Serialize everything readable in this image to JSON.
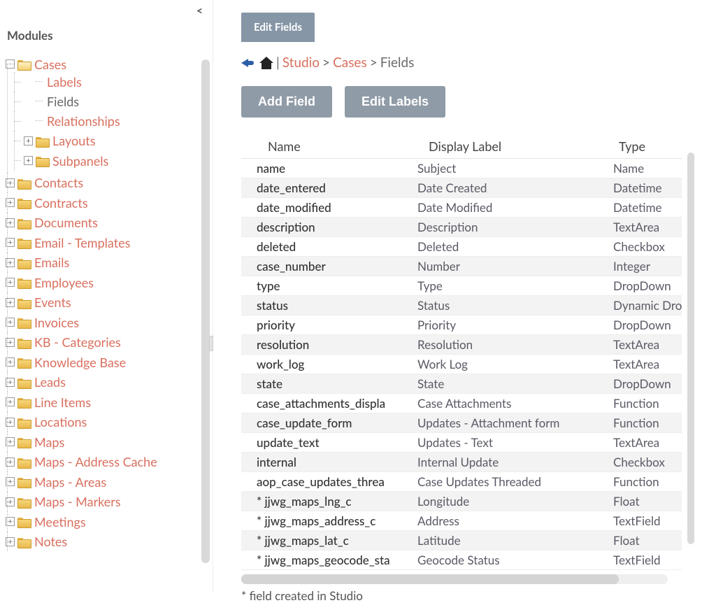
{
  "sidebar": {
    "title": "Modules",
    "expanded": {
      "label": "Cases",
      "children": [
        {
          "label": "Labels",
          "type": "leaf",
          "link": true
        },
        {
          "label": "Fields",
          "type": "leaf",
          "link": false
        },
        {
          "label": "Relationships",
          "type": "leaf",
          "link": true
        },
        {
          "label": "Layouts",
          "type": "folder",
          "link": true
        },
        {
          "label": "Subpanels",
          "type": "folder",
          "link": true
        }
      ]
    },
    "modules": [
      "Contacts",
      "Contracts",
      "Documents",
      "Email - Templates",
      "Emails",
      "Employees",
      "Events",
      "Invoices",
      "KB - Categories",
      "Knowledge Base",
      "Leads",
      "Line Items",
      "Locations",
      "Maps",
      "Maps - Address Cache",
      "Maps - Areas",
      "Maps - Markers",
      "Meetings",
      "Notes"
    ]
  },
  "tab_label": "Edit Fields",
  "breadcrumb": {
    "sep_pipe": " | ",
    "studio": "Studio",
    "cases": "Cases",
    "fields": "Fields",
    "gt": " > "
  },
  "buttons": {
    "add_field": "Add Field",
    "edit_labels": "Edit Labels"
  },
  "columns": {
    "name": "Name",
    "display": "Display Label",
    "type": "Type"
  },
  "rows": [
    {
      "name": "name",
      "display": "Subject",
      "type": "Name"
    },
    {
      "name": "date_entered",
      "display": "Date Created",
      "type": "Datetime"
    },
    {
      "name": "date_modified",
      "display": "Date Modified",
      "type": "Datetime"
    },
    {
      "name": "description",
      "display": "Description",
      "type": "TextArea"
    },
    {
      "name": "deleted",
      "display": "Deleted",
      "type": "Checkbox"
    },
    {
      "name": "case_number",
      "display": "Number",
      "type": "Integer"
    },
    {
      "name": "type",
      "display": "Type",
      "type": "DropDown"
    },
    {
      "name": "status",
      "display": "Status",
      "type": "Dynamic Dro"
    },
    {
      "name": "priority",
      "display": "Priority",
      "type": "DropDown"
    },
    {
      "name": "resolution",
      "display": "Resolution",
      "type": "TextArea"
    },
    {
      "name": "work_log",
      "display": "Work Log",
      "type": "TextArea"
    },
    {
      "name": "state",
      "display": "State",
      "type": "DropDown"
    },
    {
      "name": "case_attachments_displa",
      "display": "Case Attachments",
      "type": "Function"
    },
    {
      "name": "case_update_form",
      "display": "Updates - Attachment form",
      "type": "Function"
    },
    {
      "name": "update_text",
      "display": "Updates - Text",
      "type": "TextArea"
    },
    {
      "name": "internal",
      "display": "Internal Update",
      "type": "Checkbox"
    },
    {
      "name": "aop_case_updates_threa",
      "display": "Case Updates Threaded",
      "type": "Function"
    },
    {
      "name": "* jjwg_maps_lng_c",
      "display": "Longitude",
      "type": "Float"
    },
    {
      "name": "* jjwg_maps_address_c",
      "display": "Address",
      "type": "TextField"
    },
    {
      "name": "* jjwg_maps_lat_c",
      "display": "Latitude",
      "type": "Float"
    },
    {
      "name": "* jjwg_maps_geocode_sta",
      "display": "Geocode Status",
      "type": "TextField"
    }
  ],
  "footnote": "* field created in Studio",
  "colors": {
    "link": "#d9705f",
    "button_bg": "#8f9ba7",
    "tab_bg": "#8696a6",
    "row_alt": "#f3f3f3"
  }
}
